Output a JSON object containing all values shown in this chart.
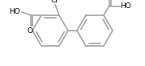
{
  "bg_color": "#ffffff",
  "line_color": "#aaaaaa",
  "text_color": "#000000",
  "line_width": 1.3,
  "font_size": 6.5,
  "figsize": [
    1.79,
    0.82
  ],
  "dpi": 100,
  "xlim": [
    0,
    179
  ],
  "ylim": [
    0,
    82
  ],
  "lcx": 62,
  "lcy": 44,
  "rcx": 117,
  "rcy": 44,
  "r": 22
}
